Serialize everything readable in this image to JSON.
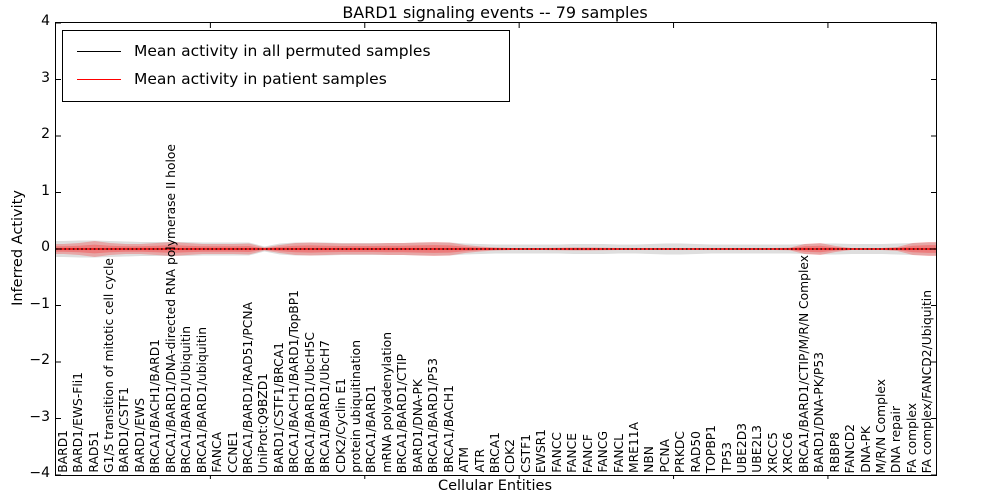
{
  "title": "BARD1 signaling events -- 79 samples",
  "legend": {
    "items": [
      {
        "label": "Mean activity in all permuted samples",
        "color": "#000000"
      },
      {
        "label": "Mean activity in patient samples",
        "color": "#ff0000"
      }
    ]
  },
  "axes": {
    "xlabel": "Cellular Entities",
    "ylabel": "Inferred Activity",
    "yticks": [
      4,
      3,
      2,
      1,
      0,
      -1,
      -2,
      -3,
      -4
    ],
    "ylim": [
      -4,
      4
    ]
  },
  "chart_data": {
    "type": "area",
    "title": "BARD1 signaling events -- 79 samples",
    "xlabel": "Cellular Entities",
    "ylabel": "Inferred Activity",
    "ylim": [
      -4,
      4
    ],
    "grid": false,
    "legend_position": "upper left",
    "categories": [
      "BARD1",
      "BARD1/EWS-Fli1",
      "RAD51",
      "G1/S transition of mitotic cell cycle",
      "BARD1/CSTF1",
      "BARD1/EWS",
      "BRCA1/BACH1/BARD1",
      "BRCA1/BARD1/DNA-directed RNA polymerase II holoe",
      "BRCA1/BARD1/Ubiquitin",
      "BRCA1/BARD1/ubiquitin",
      "FANCA",
      "CCNE1",
      "BRCA1/BARD1/RAD51/PCNA",
      "UniProt:Q9BZD1",
      "BARD1/CSTF1/BRCA1",
      "BRCA1/BACH1/BARD1/TopBP1",
      "BRCA1/BARD1/UbcH5C",
      "BRCA1/BARD1/UbcH7",
      "CDK2/Cyclin E1",
      "protein ubiquitination",
      "BRCA1/BARD1",
      "mRNA polyadenylation",
      "BRCA1/BARD1/CTIP",
      "BARD1/DNA-PK",
      "BRCA1/BARD1/P53",
      "BRCA1/BACH1",
      "ATM",
      "ATR",
      "BRCA1",
      "CDK2",
      "CSTF1",
      "EWSR1",
      "FANCC",
      "FANCE",
      "FANCF",
      "FANCG",
      "FANCL",
      "MRE11A",
      "NBN",
      "PCNA",
      "PRKDC",
      "RAD50",
      "TOPBP1",
      "TP53",
      "UBE2D3",
      "UBE2L3",
      "XRCC5",
      "XRCC6",
      "BRCA1/BARD1/CTIP/M/R/N Complex",
      "BARD1/DNA-PK/P53",
      "RBBP8",
      "FANCD2",
      "DNA-PK",
      "M/R/N Complex",
      "DNA repair",
      "FA complex",
      "FA complex/FANCD2/Ubiquitin"
    ],
    "series": [
      {
        "name": "Mean activity in all permuted samples",
        "color": "#000000",
        "style": "dotted",
        "values": [
          0,
          0,
          0,
          0,
          0,
          0,
          0,
          0,
          0,
          0,
          0,
          0,
          0,
          0,
          0,
          0,
          0,
          0,
          0,
          0,
          0,
          0,
          0,
          0,
          0,
          0,
          0,
          0,
          0,
          0,
          0,
          0,
          0,
          0,
          0,
          0,
          0,
          0,
          0,
          0,
          0,
          0,
          0,
          0,
          0,
          0,
          0,
          0,
          0,
          0,
          0,
          0,
          0,
          0,
          0,
          0,
          0
        ]
      },
      {
        "name": "Mean activity in patient samples",
        "color": "#ff0000",
        "style": "solid",
        "values": [
          0,
          0,
          0,
          0,
          0,
          0,
          0,
          0,
          0,
          0,
          0,
          0,
          0,
          0,
          0,
          0,
          0,
          0,
          0,
          0,
          0,
          0,
          0,
          0,
          0,
          0,
          0,
          0,
          0,
          0,
          0,
          0,
          0,
          0,
          0,
          0,
          0,
          0,
          0,
          0,
          0,
          0,
          0,
          0,
          0,
          0,
          0,
          0,
          0,
          0,
          0,
          0,
          0,
          0,
          0,
          0,
          0
        ]
      }
    ],
    "bands": [
      {
        "name": "permuted samples range",
        "color": "#000000",
        "opacity": 0.13,
        "halfwidths": [
          0.142,
          0.15,
          0.15,
          0.142,
          0.133,
          0.124,
          0.124,
          0.124,
          0.124,
          0.115,
          0.115,
          0.115,
          0.115,
          0.044,
          0.097,
          0.115,
          0.115,
          0.115,
          0.106,
          0.106,
          0.106,
          0.106,
          0.106,
          0.115,
          0.115,
          0.115,
          0.097,
          0.088,
          0.08,
          0.08,
          0.08,
          0.08,
          0.08,
          0.088,
          0.088,
          0.088,
          0.08,
          0.08,
          0.088,
          0.097,
          0.097,
          0.088,
          0.08,
          0.08,
          0.08,
          0.08,
          0.08,
          0.08,
          0.088,
          0.097,
          0.097,
          0.088,
          0.088,
          0.088,
          0.097,
          0.106,
          0.115
        ]
      },
      {
        "name": "patient samples range",
        "color": "#ff0000",
        "opacity": 0.25,
        "halfwidths": [
          0.088,
          0.106,
          0.142,
          0.106,
          0.088,
          0.088,
          0.106,
          0.124,
          0.106,
          0.088,
          0.088,
          0.088,
          0.097,
          0.027,
          0.071,
          0.106,
          0.115,
          0.106,
          0.097,
          0.097,
          0.097,
          0.106,
          0.106,
          0.115,
          0.124,
          0.115,
          0.071,
          0.044,
          0.027,
          0.018,
          0.018,
          0.018,
          0.021,
          0.027,
          0.027,
          0.021,
          0.018,
          0.018,
          0.018,
          0.018,
          0.018,
          0.018,
          0.018,
          0.018,
          0.018,
          0.018,
          0.018,
          0.021,
          0.088,
          0.106,
          0.053,
          0.018,
          0.018,
          0.018,
          0.035,
          0.106,
          0.124
        ]
      }
    ],
    "xtick_marks_at_fraction_of_57": [
      10,
      20,
      30,
      40,
      50
    ]
  }
}
